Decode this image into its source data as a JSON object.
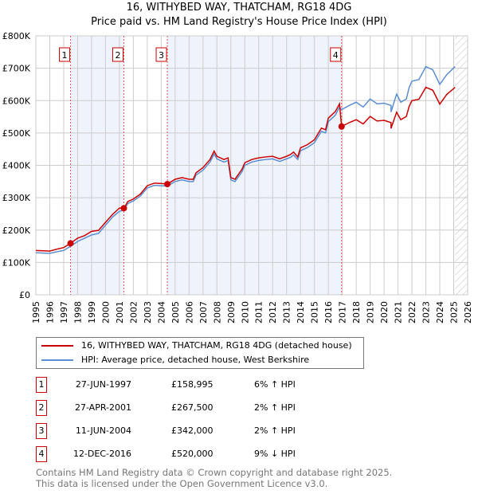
{
  "chart_data": {
    "type": "line",
    "title": "16, WITHYBED WAY, THATCHAM, RG18 4DG",
    "subtitle": "Price paid vs. HM Land Registry's House Price Index (HPI)",
    "xlim": [
      1995,
      2026
    ],
    "ylim": [
      0,
      800000
    ],
    "x_ticks": [
      "1995",
      "1996",
      "1997",
      "1998",
      "1999",
      "2000",
      "2001",
      "2002",
      "2003",
      "2004",
      "2005",
      "2006",
      "2007",
      "2008",
      "2009",
      "2010",
      "2011",
      "2012",
      "2013",
      "2014",
      "2015",
      "2016",
      "2017",
      "2018",
      "2019",
      "2020",
      "2021",
      "2022",
      "2023",
      "2024",
      "2025",
      "2026"
    ],
    "y_ticks": [
      {
        "v": 0,
        "label": "£0"
      },
      {
        "v": 100000,
        "label": "£100K"
      },
      {
        "v": 200000,
        "label": "£200K"
      },
      {
        "v": 300000,
        "label": "£300K"
      },
      {
        "v": 400000,
        "label": "£400K"
      },
      {
        "v": 500000,
        "label": "£500K"
      },
      {
        "v": 600000,
        "label": "£600K"
      },
      {
        "v": 700000,
        "label": "£700K"
      },
      {
        "v": 800000,
        "label": "£800K"
      }
    ],
    "grid": true,
    "forecast_hatch_from": 2025.1,
    "series": [
      {
        "name": "16, WITHYBED WAY, THATCHAM, RG18 4DG (detached house)",
        "color": "#cc0000",
        "points": [
          [
            1995,
            137
          ],
          [
            1996,
            135
          ],
          [
            1996.5,
            141
          ],
          [
            1997,
            146
          ],
          [
            1997.49,
            159
          ],
          [
            1998,
            175
          ],
          [
            1998.5,
            183
          ],
          [
            1999,
            196
          ],
          [
            1999.5,
            199
          ],
          [
            2000,
            224
          ],
          [
            2000.5,
            248
          ],
          [
            2001,
            268
          ],
          [
            2001.32,
            267.5
          ],
          [
            2001.6,
            288
          ],
          [
            2002,
            296
          ],
          [
            2002.5,
            311
          ],
          [
            2003,
            337
          ],
          [
            2003.5,
            345
          ],
          [
            2004,
            344
          ],
          [
            2004.44,
            342
          ],
          [
            2005,
            357
          ],
          [
            2005.5,
            362
          ],
          [
            2006,
            357
          ],
          [
            2006.3,
            357
          ],
          [
            2006.5,
            377
          ],
          [
            2007,
            393
          ],
          [
            2007.5,
            418
          ],
          [
            2007.8,
            444
          ],
          [
            2008,
            428
          ],
          [
            2008.5,
            418
          ],
          [
            2008.8,
            423
          ],
          [
            2009,
            362
          ],
          [
            2009.3,
            357
          ],
          [
            2009.8,
            388
          ],
          [
            2010,
            408
          ],
          [
            2010.5,
            418
          ],
          [
            2011,
            423
          ],
          [
            2011.5,
            426
          ],
          [
            2012,
            428
          ],
          [
            2012.5,
            420
          ],
          [
            2013,
            428
          ],
          [
            2013.3,
            434
          ],
          [
            2013.5,
            441
          ],
          [
            2013.8,
            426
          ],
          [
            2014,
            454
          ],
          [
            2014.5,
            464
          ],
          [
            2015,
            479
          ],
          [
            2015.5,
            515
          ],
          [
            2015.8,
            510
          ],
          [
            2016,
            546
          ],
          [
            2016.5,
            566
          ],
          [
            2016.8,
            590
          ],
          [
            2016.95,
            520
          ],
          [
            2017.5,
            532
          ],
          [
            2018,
            541
          ],
          [
            2018.5,
            528
          ],
          [
            2019,
            551
          ],
          [
            2019.5,
            537
          ],
          [
            2020,
            539
          ],
          [
            2020.5,
            532
          ],
          [
            2020.5,
            514
          ],
          [
            2020.9,
            564
          ],
          [
            2021.2,
            541
          ],
          [
            2021.6,
            551
          ],
          [
            2021.8,
            582
          ],
          [
            2022,
            600
          ],
          [
            2022.5,
            604
          ],
          [
            2023,
            641
          ],
          [
            2023.5,
            632
          ],
          [
            2024,
            589
          ],
          [
            2024.5,
            619
          ],
          [
            2025.1,
            641
          ]
        ]
      },
      {
        "name": "HPI: Average price, detached house, West Berkshire",
        "color": "#5b8fd4",
        "points": [
          [
            1995,
            130
          ],
          [
            1996,
            128
          ],
          [
            1996.5,
            133
          ],
          [
            1997,
            137
          ],
          [
            1997.49,
            150
          ],
          [
            1998,
            165
          ],
          [
            1998.5,
            175
          ],
          [
            1999,
            185
          ],
          [
            1999.5,
            190
          ],
          [
            2000,
            215
          ],
          [
            2000.5,
            240
          ],
          [
            2001,
            258
          ],
          [
            2001.32,
            262
          ],
          [
            2001.6,
            282
          ],
          [
            2002,
            290
          ],
          [
            2002.5,
            305
          ],
          [
            2003,
            330
          ],
          [
            2003.5,
            338
          ],
          [
            2004,
            337
          ],
          [
            2004.44,
            336
          ],
          [
            2005,
            350
          ],
          [
            2005.5,
            355
          ],
          [
            2006,
            350
          ],
          [
            2006.3,
            350
          ],
          [
            2006.5,
            370
          ],
          [
            2007,
            385
          ],
          [
            2007.5,
            410
          ],
          [
            2007.8,
            435
          ],
          [
            2008,
            420
          ],
          [
            2008.5,
            410
          ],
          [
            2008.8,
            415
          ],
          [
            2009,
            355
          ],
          [
            2009.3,
            350
          ],
          [
            2009.8,
            380
          ],
          [
            2010,
            400
          ],
          [
            2010.5,
            410
          ],
          [
            2011,
            415
          ],
          [
            2011.5,
            418
          ],
          [
            2012,
            420
          ],
          [
            2012.5,
            412
          ],
          [
            2013,
            420
          ],
          [
            2013.3,
            425
          ],
          [
            2013.5,
            432
          ],
          [
            2013.8,
            418
          ],
          [
            2014,
            445
          ],
          [
            2014.5,
            455
          ],
          [
            2015,
            470
          ],
          [
            2015.5,
            505
          ],
          [
            2015.8,
            500
          ],
          [
            2016,
            535
          ],
          [
            2016.5,
            555
          ],
          [
            2016.8,
            580
          ],
          [
            2016.95,
            572
          ],
          [
            2017.5,
            585
          ],
          [
            2018,
            595
          ],
          [
            2018.5,
            580
          ],
          [
            2019,
            605
          ],
          [
            2019.5,
            590
          ],
          [
            2020,
            592
          ],
          [
            2020.5,
            585
          ],
          [
            2020.5,
            565
          ],
          [
            2020.9,
            620
          ],
          [
            2021.2,
            595
          ],
          [
            2021.6,
            605
          ],
          [
            2021.8,
            640
          ],
          [
            2022,
            660
          ],
          [
            2022.5,
            665
          ],
          [
            2023,
            705
          ],
          [
            2023.5,
            695
          ],
          [
            2024,
            650
          ],
          [
            2024.5,
            680
          ],
          [
            2025.1,
            705
          ]
        ]
      }
    ],
    "sales": [
      {
        "n": "1",
        "x": 1997.49,
        "date": "27-JUN-1997",
        "price": "£158,995",
        "price_value": 158995,
        "hpi": "6% ↑ HPI"
      },
      {
        "n": "2",
        "x": 2001.32,
        "date": "27-APR-2001",
        "price": "£267,500",
        "price_value": 267500,
        "hpi": "2% ↑ HPI"
      },
      {
        "n": "3",
        "x": 2004.44,
        "date": "11-JUN-2004",
        "price": "£342,000",
        "price_value": 342000,
        "hpi": "2% ↑ HPI"
      },
      {
        "n": "4",
        "x": 2016.95,
        "date": "12-DEC-2016",
        "price": "£520,000",
        "price_value": 520000,
        "hpi": "9% ↓ HPI"
      }
    ]
  },
  "legend": {
    "property": "16, WITHYBED WAY, THATCHAM, RG18 4DG (detached house)",
    "hpi": "HPI: Average price, detached house, West Berkshire"
  },
  "footer": {
    "line1": "Contains HM Land Registry data © Crown copyright and database right 2025.",
    "line2": "This data is licensed under the Open Government Licence v3.0."
  }
}
